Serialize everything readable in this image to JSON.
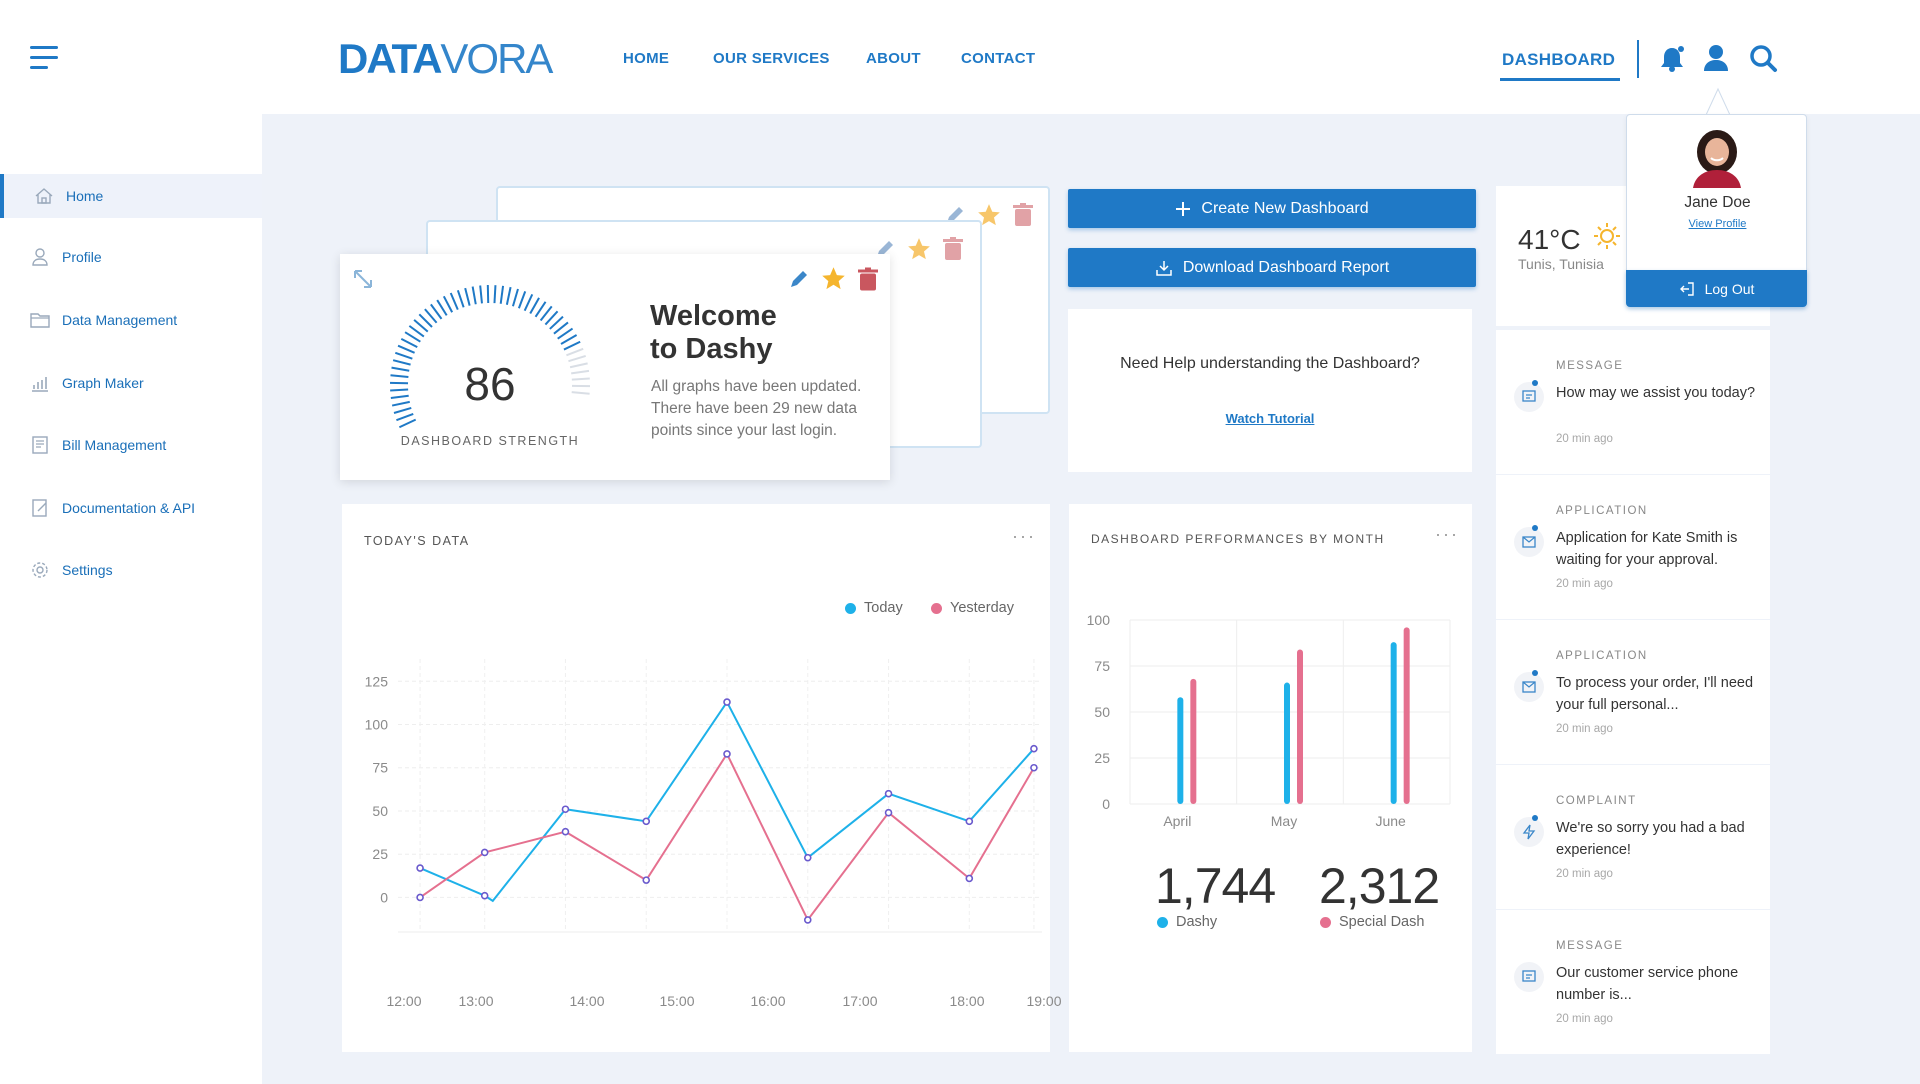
{
  "brand": {
    "part1": "DATA",
    "part2": "VORA"
  },
  "nav": {
    "home": "HOME",
    "services": "OUR SERVICES",
    "about": "ABOUT",
    "contact": "CONTACT",
    "dashboard": "DASHBOARD"
  },
  "sidebar": {
    "items": [
      {
        "label": "Home",
        "icon": "home-icon"
      },
      {
        "label": "Profile",
        "icon": "user-icon"
      },
      {
        "label": "Data Management",
        "icon": "folder-icon"
      },
      {
        "label": "Graph Maker",
        "icon": "chart-icon"
      },
      {
        "label": "Bill Management",
        "icon": "bill-icon"
      },
      {
        "label": "Documentation & API",
        "icon": "document-icon"
      },
      {
        "label": "Settings",
        "icon": "gear-icon"
      }
    ]
  },
  "welcome": {
    "title_line1": "Welcome",
    "title_line2": "to Dashy",
    "text": "All graphs have been updated. There have been 29 new data points since your last login.",
    "gauge_value": 86,
    "gauge_label": "DASHBOARD STRENGTH"
  },
  "actions": {
    "create": "Create New Dashboard",
    "download": "Download Dashboard Report"
  },
  "help": {
    "question": "Need Help understanding the Dashboard?",
    "link": "Watch Tutorial"
  },
  "weather": {
    "temp": "41°C",
    "location": "Tunis, Tunisia"
  },
  "profile": {
    "name": "Jane Doe",
    "view": "View Profile",
    "logout": "Log Out"
  },
  "notifications": [
    {
      "category": "MESSAGE",
      "text": "How may we assist you today?",
      "time": "20 min ago",
      "icon": "chat-icon"
    },
    {
      "category": "APPLICATION",
      "text": "Application for Kate Smith is waiting for your approval.",
      "time": "20 min ago",
      "icon": "mail-icon"
    },
    {
      "category": "APPLICATION",
      "text": "To process your order, I'll need your full personal...",
      "time": "20 min ago",
      "icon": "mail-icon"
    },
    {
      "category": "COMPLAINT",
      "text": "We're so sorry you had a bad experience!",
      "time": "20 min ago",
      "icon": "bolt-icon"
    },
    {
      "category": "MESSAGE",
      "text": "Our customer service phone number is...",
      "time": "20 min ago",
      "icon": "chat-icon"
    }
  ],
  "colors": {
    "primary": "#1f79c6",
    "today": "#1eb1e9",
    "yesterday": "#e5708f",
    "star": "#f5b52e",
    "trash": "#c9575f"
  },
  "chart_data": [
    {
      "type": "line",
      "title": "TODAY'S DATA",
      "x": [
        "12:00",
        "13:00",
        "14:00",
        "15:00",
        "16:00",
        "17:00",
        "18:00",
        "19:00"
      ],
      "x_numeric": [
        12.0,
        12.8,
        13.0,
        14.0,
        15.0,
        16.0,
        17.0,
        18.0,
        19.0
      ],
      "yticks": [
        0,
        25,
        50,
        75,
        100,
        125
      ],
      "ylim": [
        -20,
        135
      ],
      "series": [
        {
          "name": "Today",
          "points": [
            [
              12.0,
              17
            ],
            [
              12.8,
              1
            ],
            [
              12.9,
              -2
            ],
            [
              13.8,
              51
            ],
            [
              14.8,
              44
            ],
            [
              15.8,
              113
            ],
            [
              16.8,
              23
            ],
            [
              17.8,
              60
            ],
            [
              18.8,
              44
            ],
            [
              19.6,
              86
            ]
          ]
        },
        {
          "name": "Yesterday",
          "points": [
            [
              12.0,
              0
            ],
            [
              12.8,
              26
            ],
            [
              13.8,
              38
            ],
            [
              14.8,
              10
            ],
            [
              15.8,
              83
            ],
            [
              16.8,
              -13
            ],
            [
              17.8,
              49
            ],
            [
              18.8,
              11
            ],
            [
              19.6,
              75
            ]
          ]
        }
      ],
      "legend": [
        "Today",
        "Yesterday"
      ]
    },
    {
      "type": "bar",
      "title": "DASHBOARD PERFORMANCES BY MONTH",
      "categories": [
        "April",
        "May",
        "June"
      ],
      "yticks": [
        0,
        25,
        50,
        75,
        100
      ],
      "ylim": [
        0,
        100
      ],
      "series": [
        {
          "name": "Dashy",
          "values": [
            58,
            66,
            88
          ]
        },
        {
          "name": "Special Dash",
          "values": [
            68,
            84,
            96
          ]
        }
      ],
      "totals": [
        {
          "value": "1,744",
          "label": "Dashy"
        },
        {
          "value": "2,312",
          "label": "Special Dash"
        }
      ]
    }
  ]
}
